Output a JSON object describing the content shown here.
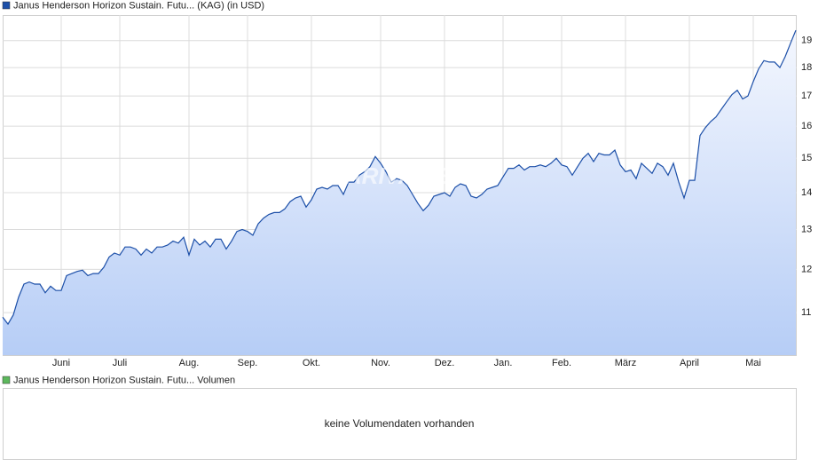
{
  "chart_data": [
    {
      "type": "area",
      "watermark": "ARIVA.DE",
      "series": [
        {
          "name": "Janus Henderson Horizon Sustain. Futu... (KAG) (in USD)",
          "color": "#1c4fa8",
          "values": [
            10.9,
            10.75,
            10.95,
            11.35,
            11.65,
            11.7,
            11.65,
            11.65,
            11.45,
            11.6,
            11.5,
            11.5,
            11.85,
            11.9,
            11.95,
            11.98,
            11.85,
            11.9,
            11.9,
            12.05,
            12.3,
            12.4,
            12.35,
            12.55,
            12.55,
            12.5,
            12.35,
            12.5,
            12.4,
            12.55,
            12.55,
            12.6,
            12.7,
            12.65,
            12.8,
            12.35,
            12.75,
            12.6,
            12.7,
            12.55,
            12.75,
            12.75,
            12.5,
            12.7,
            12.95,
            13.0,
            12.95,
            12.85,
            13.15,
            13.3,
            13.4,
            13.45,
            13.45,
            13.55,
            13.75,
            13.85,
            13.9,
            13.6,
            13.8,
            14.1,
            14.15,
            14.1,
            14.2,
            14.2,
            13.95,
            14.3,
            14.3,
            14.5,
            14.6,
            14.75,
            15.05,
            14.85,
            14.6,
            14.3,
            14.4,
            14.35,
            14.2,
            13.95,
            13.7,
            13.5,
            13.65,
            13.9,
            13.95,
            14.0,
            13.9,
            14.15,
            14.25,
            14.2,
            13.9,
            13.85,
            13.95,
            14.1,
            14.15,
            14.2,
            14.45,
            14.7,
            14.7,
            14.8,
            14.65,
            14.75,
            14.75,
            14.8,
            14.75,
            14.85,
            15.0,
            14.8,
            14.75,
            14.5,
            14.75,
            15.0,
            15.15,
            14.9,
            15.15,
            15.1,
            15.1,
            15.25,
            14.8,
            14.6,
            14.65,
            14.4,
            14.85,
            14.7,
            14.55,
            14.85,
            14.75,
            14.5,
            14.85,
            14.3,
            13.85,
            14.35,
            14.35,
            15.7,
            15.95,
            16.15,
            16.3,
            16.55,
            16.8,
            17.05,
            17.2,
            16.9,
            17.0,
            17.5,
            17.95,
            18.25,
            18.2,
            18.2,
            18.0,
            18.4,
            18.9,
            19.4
          ]
        }
      ],
      "xlim": [
        0,
        149
      ],
      "xticks": [
        {
          "value": 11,
          "label": "Juni"
        },
        {
          "value": 22,
          "label": "Juli"
        },
        {
          "value": 35,
          "label": "Aug."
        },
        {
          "value": 46,
          "label": "Sep."
        },
        {
          "value": 58,
          "label": "Okt."
        },
        {
          "value": 71,
          "label": "Nov."
        },
        {
          "value": 83,
          "label": "Dez."
        },
        {
          "value": 94,
          "label": "Jan."
        },
        {
          "value": 105,
          "label": "Feb."
        },
        {
          "value": 117,
          "label": "März"
        },
        {
          "value": 129,
          "label": "April"
        },
        {
          "value": 141,
          "label": "Mai"
        }
      ],
      "ylim": [
        10.1,
        20
      ],
      "yticks": [
        11,
        12,
        13,
        14,
        15,
        16,
        17,
        18,
        19
      ],
      "log_scale": true,
      "grid": true
    },
    {
      "type": "bar",
      "legend": "Janus Henderson Horizon Sustain. Futu... Volumen",
      "color": "#5cb85c",
      "message": "keine Volumendaten vorhanden"
    }
  ]
}
